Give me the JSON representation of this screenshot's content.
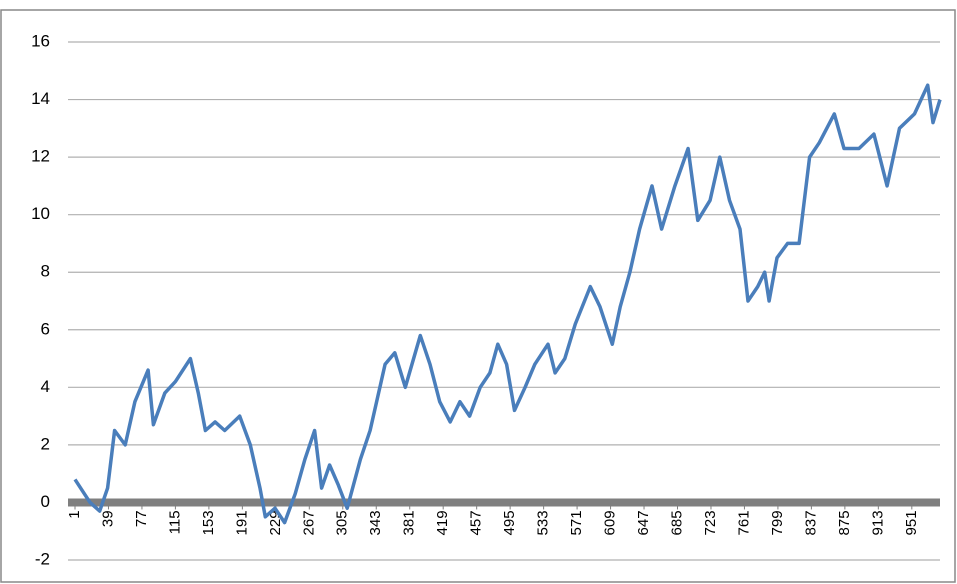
{
  "chart_data": {
    "type": "line",
    "color": "#4a7ebb",
    "grid": true,
    "xlim": [
      1,
      983
    ],
    "xticks": [
      1,
      39,
      77,
      115,
      153,
      191,
      229,
      267,
      305,
      343,
      381,
      419,
      457,
      495,
      533,
      571,
      609,
      647,
      685,
      723,
      761,
      799,
      837,
      875,
      913,
      951
    ],
    "ylim": [
      -2,
      16
    ],
    "yticks": [
      -2,
      0,
      2,
      4,
      6,
      8,
      10,
      12,
      14,
      16
    ],
    "x": [
      1,
      18,
      29,
      38,
      46,
      58,
      69,
      84,
      90,
      103,
      115,
      132,
      141,
      149,
      160,
      171,
      188,
      200,
      211,
      217,
      228,
      239,
      251,
      262,
      273,
      281,
      290,
      300,
      310,
      325,
      336,
      353,
      364,
      376,
      393,
      404,
      415,
      427,
      438,
      449,
      461,
      472,
      481,
      491,
      500,
      512,
      523,
      538,
      546,
      557,
      569,
      586,
      597,
      611,
      620,
      631,
      642,
      656,
      667,
      682,
      697,
      708,
      722,
      733,
      744,
      756,
      765,
      776,
      784,
      789,
      798,
      810,
      823,
      835,
      846,
      863,
      874,
      891,
      908,
      923,
      937,
      954,
      969,
      975,
      983
    ],
    "values": [
      0.8,
      0,
      -0.3,
      0.5,
      2.5,
      2.0,
      3.5,
      4.6,
      2.7,
      3.8,
      4.2,
      5.0,
      3.8,
      2.5,
      2.8,
      2.5,
      3.0,
      2.0,
      0.5,
      -0.5,
      -0.2,
      -0.7,
      0.3,
      1.5,
      2.5,
      0.5,
      1.3,
      0.6,
      -0.2,
      1.5,
      2.5,
      4.8,
      5.2,
      4.0,
      5.8,
      4.8,
      3.5,
      2.8,
      3.5,
      3.0,
      4.0,
      4.5,
      5.5,
      4.8,
      3.2,
      4.0,
      4.8,
      5.5,
      4.5,
      5.0,
      6.2,
      7.5,
      6.8,
      5.5,
      6.8,
      8.0,
      9.5,
      11.0,
      9.5,
      11.0,
      12.3,
      9.8,
      10.5,
      12.0,
      10.5,
      9.5,
      7.0,
      7.5,
      8.0,
      7.0,
      8.5,
      9.0,
      9.0,
      12.0,
      12.5,
      13.5,
      12.3,
      12.3,
      12.8,
      11.0,
      13.0,
      13.5,
      14.5,
      13.2,
      14.0
    ]
  }
}
